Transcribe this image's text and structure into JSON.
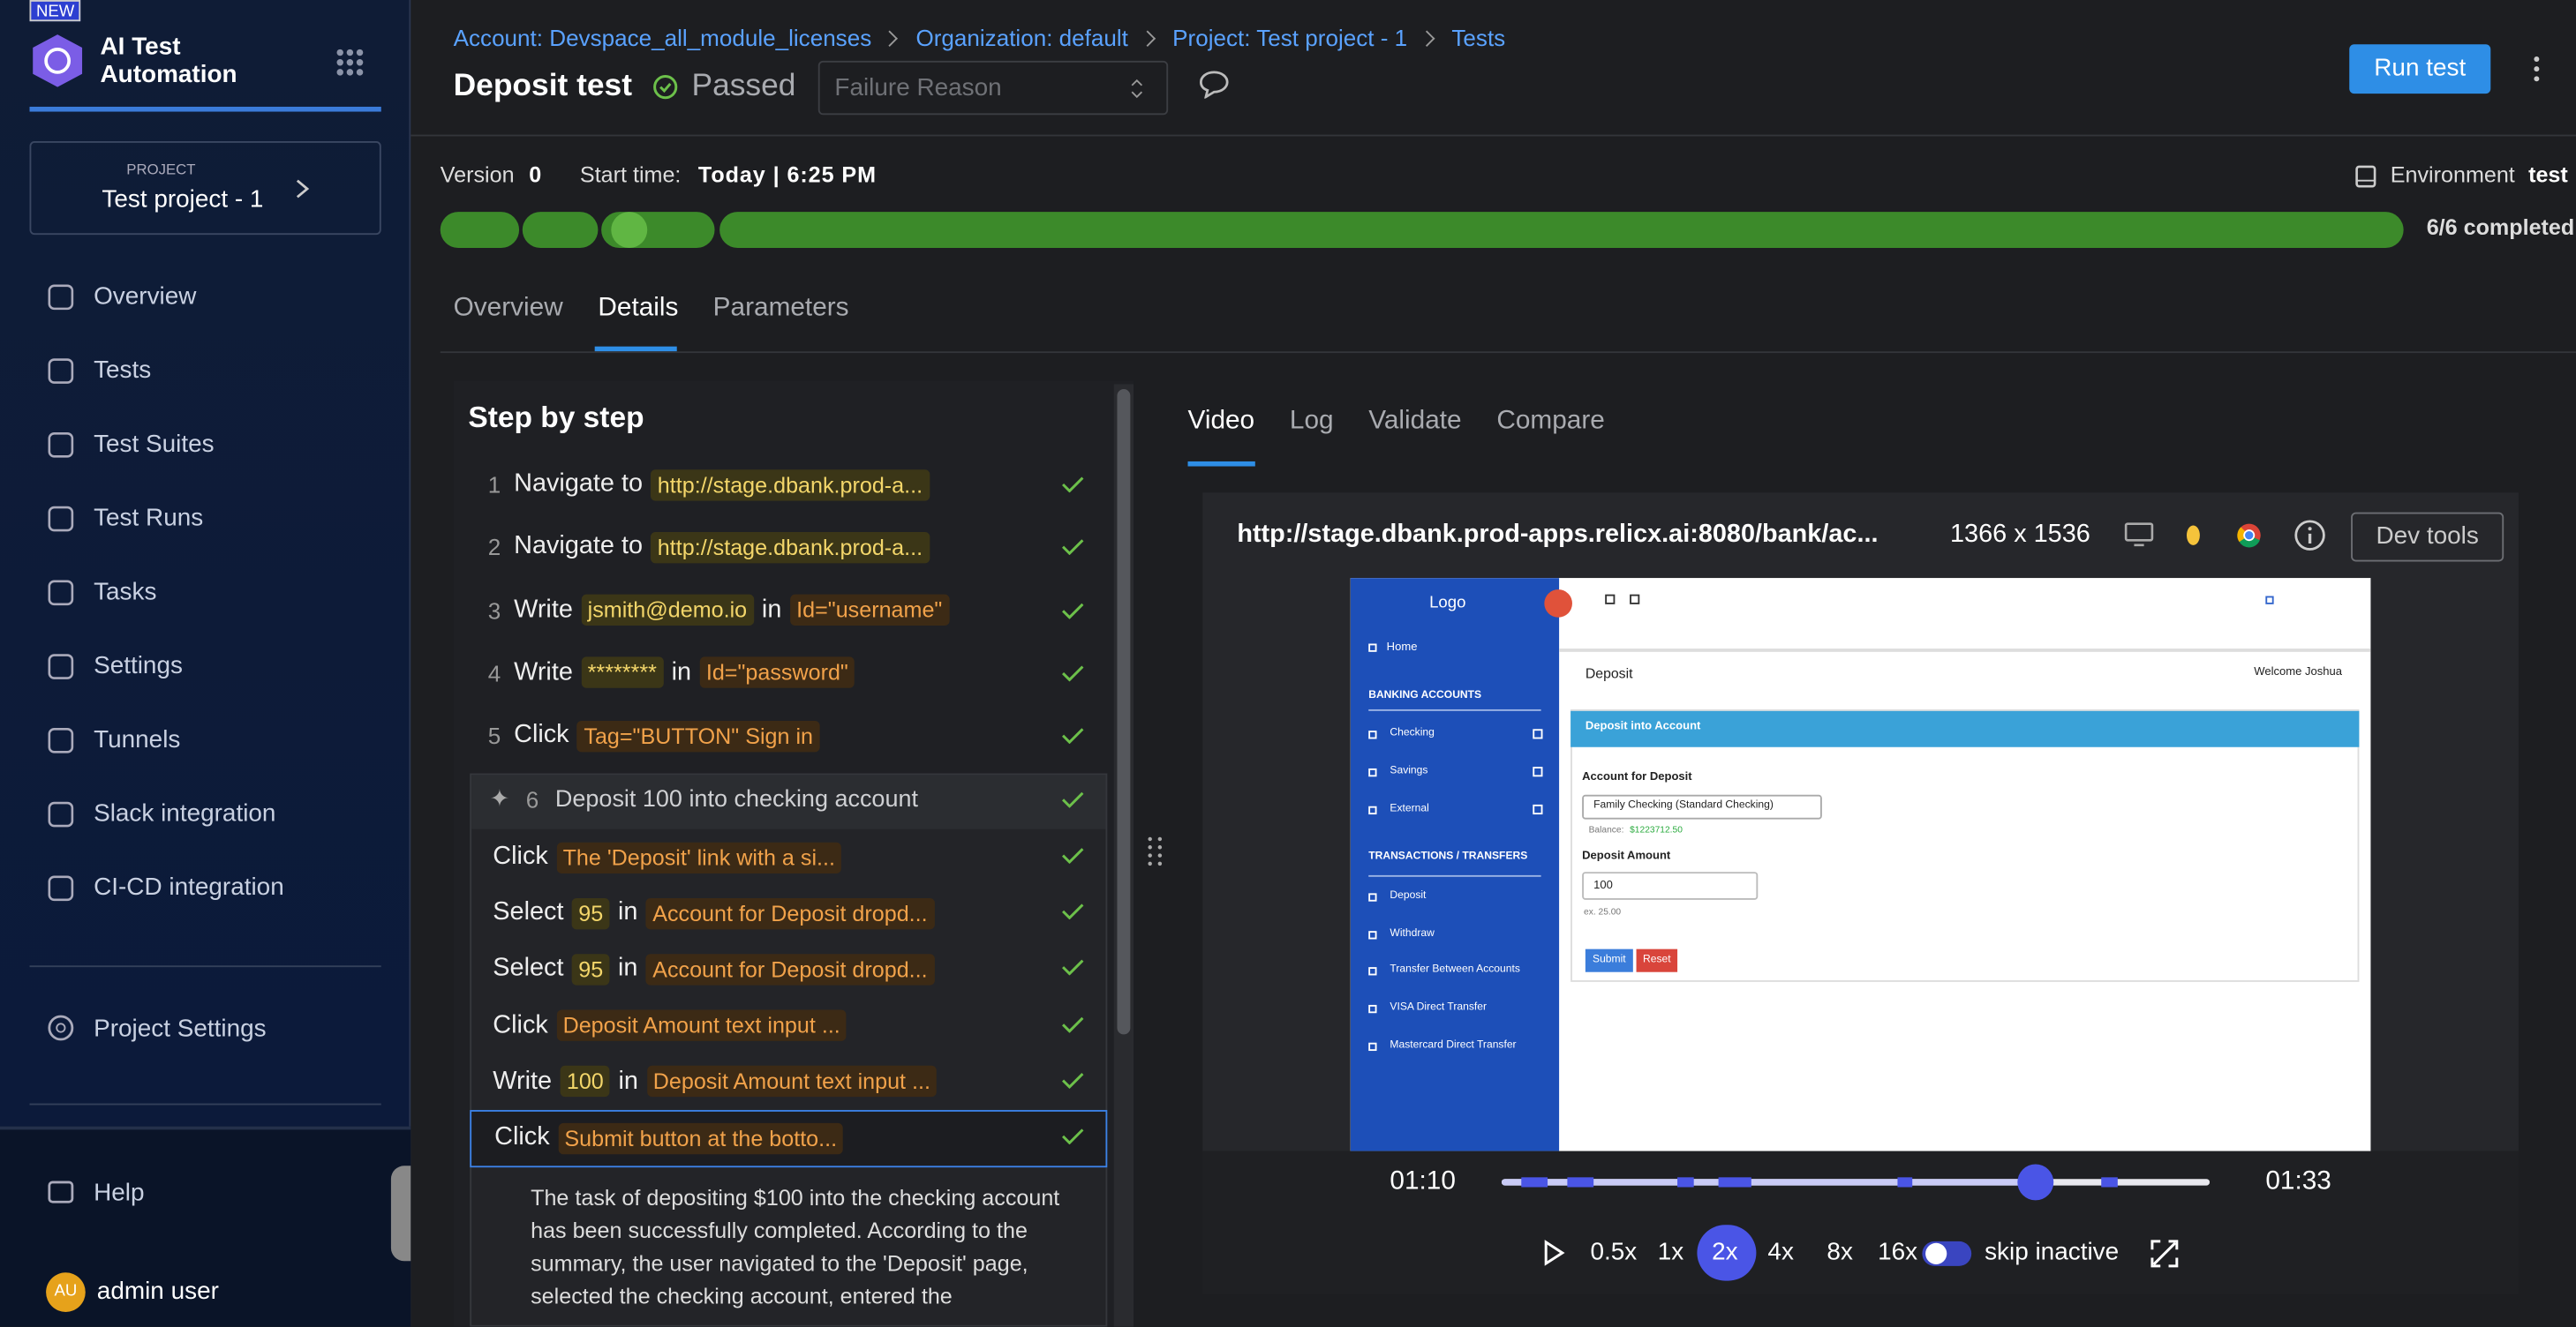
{
  "sidebar": {
    "badge": "NEW",
    "app_name": "AI Test Automation",
    "project_label": "PROJECT",
    "project_name": "Test project - 1",
    "nav": [
      "Overview",
      "Tests",
      "Test Suites",
      "Test Runs",
      "Tasks",
      "Settings",
      "Tunnels",
      "Slack integration",
      "CI-CD integration"
    ],
    "project_settings": "Project Settings",
    "help": "Help",
    "user_initials": "AU",
    "user_name": "admin user"
  },
  "header": {
    "breadcrumbs": [
      "Account: Devspace_all_module_licenses",
      "Organization: default",
      "Project: Test project - 1",
      "Tests"
    ],
    "title": "Deposit test",
    "status": "Passed",
    "failure_reason": "Failure Reason",
    "run_button": "Run test"
  },
  "run_info": {
    "version_label": "Version",
    "version": "0",
    "start_label": "Start time:",
    "start_value": "Today | 6:25 PM",
    "environment_label": "Environment",
    "environment": "test",
    "progress": "6/6 completed"
  },
  "tabs": [
    "Overview",
    "Details",
    "Parameters"
  ],
  "steps": {
    "title": "Step by step",
    "items": [
      {
        "number": 1,
        "segments": [
          {
            "text": "Navigate to"
          },
          {
            "text": "http://stage.dbank.prod-a...",
            "style": "value"
          }
        ]
      },
      {
        "number": 2,
        "segments": [
          {
            "text": "Navigate to"
          },
          {
            "text": "http://stage.dbank.prod-a...",
            "style": "value"
          }
        ]
      },
      {
        "number": 3,
        "segments": [
          {
            "text": "Write"
          },
          {
            "text": "jsmith@demo.io",
            "style": "value"
          },
          {
            "text": "in"
          },
          {
            "text": "Id=\"username\"",
            "style": "target"
          }
        ]
      },
      {
        "number": 4,
        "segments": [
          {
            "text": "Write"
          },
          {
            "text": "********",
            "style": "value"
          },
          {
            "text": "in"
          },
          {
            "text": "Id=\"password\"",
            "style": "target"
          }
        ]
      },
      {
        "number": 5,
        "segments": [
          {
            "text": "Click"
          },
          {
            "text": "Tag=\"BUTTON\" Sign in",
            "style": "target"
          }
        ]
      }
    ],
    "group": {
      "number": 6,
      "title": "Deposit 100 into checking account",
      "items": [
        {
          "segments": [
            {
              "text": "Click"
            },
            {
              "text": "The 'Deposit' link with a si...",
              "style": "target"
            }
          ]
        },
        {
          "segments": [
            {
              "text": "Select"
            },
            {
              "text": "95",
              "style": "value"
            },
            {
              "text": "in"
            },
            {
              "text": "Account for Deposit dropd...",
              "style": "target"
            }
          ]
        },
        {
          "segments": [
            {
              "text": "Select"
            },
            {
              "text": "95",
              "style": "value"
            },
            {
              "text": "in"
            },
            {
              "text": "Account for Deposit dropd...",
              "style": "target"
            }
          ]
        },
        {
          "segments": [
            {
              "text": "Click"
            },
            {
              "text": "Deposit Amount text input ...",
              "style": "target"
            }
          ]
        },
        {
          "segments": [
            {
              "text": "Write"
            },
            {
              "text": "100",
              "style": "value"
            },
            {
              "text": "in"
            },
            {
              "text": "Deposit Amount text input ...",
              "style": "target"
            }
          ]
        },
        {
          "segments": [
            {
              "text": "Click"
            },
            {
              "text": "Submit button at the botto...",
              "style": "target"
            }
          ],
          "selected": true
        }
      ],
      "summary": "The task of depositing $100 into the checking account has been successfully completed. According to the summary, the user navigated to the 'Deposit' page, selected the checking account, entered the"
    }
  },
  "player": {
    "tabs": [
      "Video",
      "Log",
      "Validate",
      "Compare"
    ],
    "url": "http://stage.dbank.prod-apps.relicx.ai:8080/bank/ac...",
    "resolution": "1366 x 1536",
    "dev_tools": "Dev tools",
    "time_current": "01:10",
    "time_end": "01:33",
    "speeds": [
      "0.5x",
      "1x",
      "2x",
      "4x",
      "8x",
      "16x"
    ],
    "active_speed": "2x",
    "skip_inactive": "skip inactive"
  },
  "preview": {
    "logo": "Logo",
    "home": "Home",
    "section1": "BANKING ACCOUNTS",
    "accounts": [
      "Checking",
      "Savings",
      "External"
    ],
    "section2": "TRANSACTIONS / TRANSFERS",
    "transfers": [
      "Deposit",
      "Withdraw",
      "Transfer Between Accounts",
      "VISA Direct Transfer",
      "Mastercard Direct Transfer"
    ],
    "page_title": "Deposit",
    "welcome": "Welcome Joshua",
    "card_title": "Deposit into Account",
    "account_label": "Account for Deposit",
    "account_option": "Family Checking (Standard Checking)",
    "balance_label": "Balance:",
    "balance": "$1223712.50",
    "amount_label": "Deposit Amount",
    "amount": "100",
    "amount_hint": "ex. 25.00",
    "submit": "Submit",
    "reset": "Reset"
  }
}
